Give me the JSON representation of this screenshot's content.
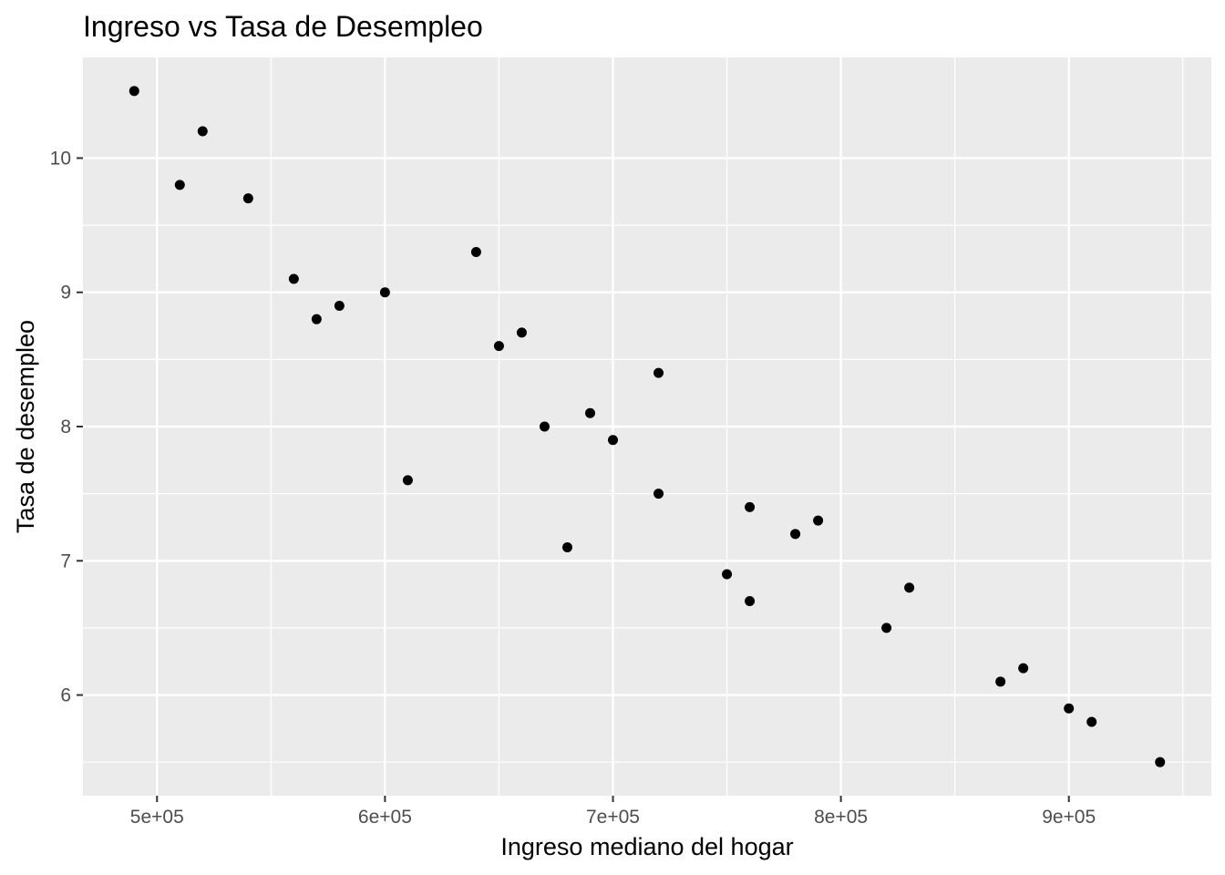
{
  "chart_data": {
    "type": "scatter",
    "title": "Ingreso vs Tasa de Desempleo",
    "xlabel": "Ingreso mediano del hogar",
    "ylabel": "Tasa de desempleo",
    "xlim": [
      467500,
      962500
    ],
    "ylim": [
      5.25,
      10.75
    ],
    "x_ticks": [
      {
        "value": 500000,
        "label": "5e+05"
      },
      {
        "value": 600000,
        "label": "6e+05"
      },
      {
        "value": 700000,
        "label": "7e+05"
      },
      {
        "value": 800000,
        "label": "8e+05"
      },
      {
        "value": 900000,
        "label": "9e+05"
      }
    ],
    "x_minor": [
      550000,
      650000,
      750000,
      850000,
      950000
    ],
    "y_ticks": [
      {
        "value": 6,
        "label": "6"
      },
      {
        "value": 7,
        "label": "7"
      },
      {
        "value": 8,
        "label": "8"
      },
      {
        "value": 9,
        "label": "9"
      },
      {
        "value": 10,
        "label": "10"
      }
    ],
    "y_minor": [
      5.5,
      6.5,
      7.5,
      8.5,
      9.5
    ],
    "grid": true,
    "legend": "none",
    "colors": {
      "panel": "#ebebeb",
      "grid": "#ffffff",
      "point": "#000000"
    },
    "points": [
      {
        "x": 490000,
        "y": 10.5
      },
      {
        "x": 510000,
        "y": 9.8
      },
      {
        "x": 520000,
        "y": 10.2
      },
      {
        "x": 540000,
        "y": 9.7
      },
      {
        "x": 560000,
        "y": 9.1
      },
      {
        "x": 570000,
        "y": 8.8
      },
      {
        "x": 580000,
        "y": 8.9
      },
      {
        "x": 600000,
        "y": 9.0
      },
      {
        "x": 610000,
        "y": 7.6
      },
      {
        "x": 640000,
        "y": 9.3
      },
      {
        "x": 650000,
        "y": 8.6
      },
      {
        "x": 660000,
        "y": 8.7
      },
      {
        "x": 670000,
        "y": 8.0
      },
      {
        "x": 680000,
        "y": 7.1
      },
      {
        "x": 690000,
        "y": 8.1
      },
      {
        "x": 700000,
        "y": 7.9
      },
      {
        "x": 720000,
        "y": 8.4
      },
      {
        "x": 720000,
        "y": 7.5
      },
      {
        "x": 750000,
        "y": 6.9
      },
      {
        "x": 760000,
        "y": 7.4
      },
      {
        "x": 760000,
        "y": 6.7
      },
      {
        "x": 780000,
        "y": 7.2
      },
      {
        "x": 790000,
        "y": 7.3
      },
      {
        "x": 820000,
        "y": 6.5
      },
      {
        "x": 830000,
        "y": 6.8
      },
      {
        "x": 870000,
        "y": 6.1
      },
      {
        "x": 880000,
        "y": 6.2
      },
      {
        "x": 900000,
        "y": 5.9
      },
      {
        "x": 910000,
        "y": 5.8
      },
      {
        "x": 940000,
        "y": 5.5
      }
    ]
  }
}
